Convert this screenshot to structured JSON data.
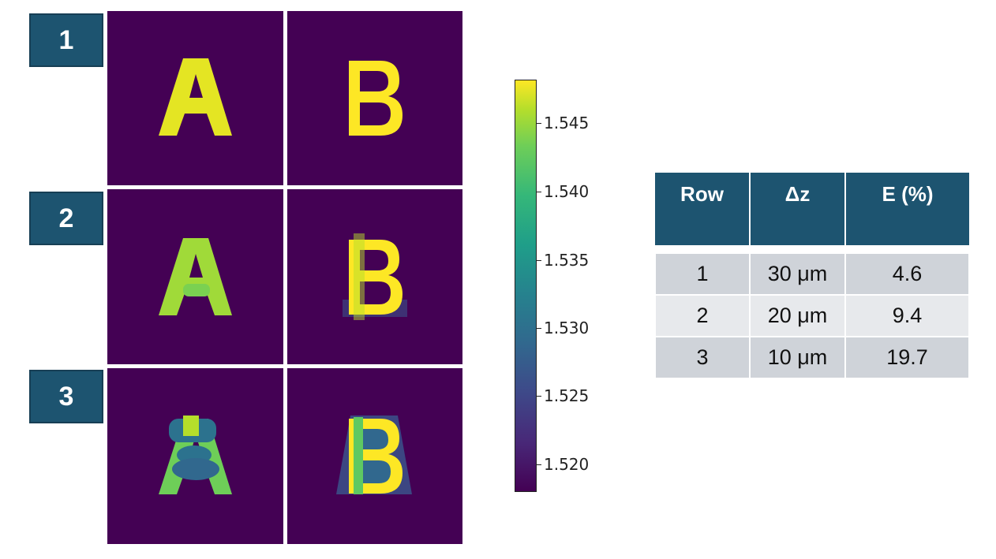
{
  "rows": [
    {
      "label": "1"
    },
    {
      "label": "2"
    },
    {
      "label": "3"
    }
  ],
  "panel_letters": [
    "A",
    "B"
  ],
  "colorbar": {
    "ticks": [
      "1.545",
      "1.540",
      "1.535",
      "1.530",
      "1.525",
      "1.520"
    ],
    "colormap": "viridis",
    "colors": {
      "low": "#440154",
      "high": "#fde725"
    }
  },
  "table": {
    "headers": [
      "Row",
      "Δz",
      "E (%)"
    ],
    "rows": [
      [
        "1",
        "30 μm",
        "4.6"
      ],
      [
        "2",
        "20 μm",
        "9.4"
      ],
      [
        "3",
        "10 μm",
        "19.7"
      ]
    ]
  },
  "colors": {
    "badge": "#1d5470",
    "header": "#1d5470",
    "background_panel": "#440154"
  }
}
